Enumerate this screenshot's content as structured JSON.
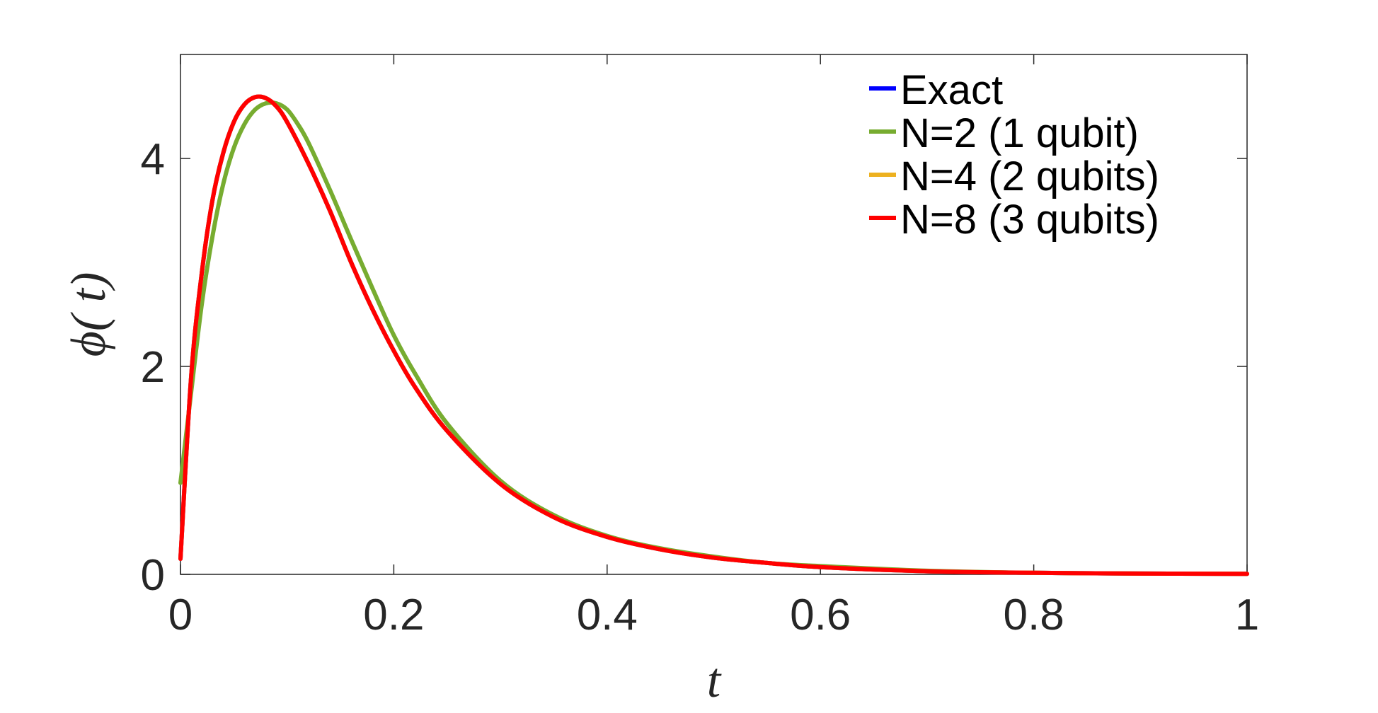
{
  "chart_data": {
    "type": "line",
    "title": "",
    "xlabel": "t",
    "ylabel": "ϕ( t)",
    "xlim": [
      0,
      1
    ],
    "ylim": [
      0,
      5
    ],
    "grid": false,
    "legend_position": "top-right",
    "x_ticks": [
      {
        "value": 0,
        "label": "0"
      },
      {
        "value": 0.2,
        "label": "0.2"
      },
      {
        "value": 0.4,
        "label": "0.4"
      },
      {
        "value": 0.6,
        "label": "0.6"
      },
      {
        "value": 0.8,
        "label": "0.8"
      },
      {
        "value": 1,
        "label": "1"
      }
    ],
    "y_ticks": [
      {
        "value": 0,
        "label": "0"
      },
      {
        "value": 2,
        "label": "2"
      },
      {
        "value": 4,
        "label": "4"
      }
    ],
    "series": [
      {
        "name": "Exact",
        "color": "#0000ff",
        "x": [
          0,
          0.01,
          0.02,
          0.03,
          0.04,
          0.05,
          0.06,
          0.07,
          0.08,
          0.09,
          0.1,
          0.12,
          0.14,
          0.16,
          0.18,
          0.2,
          0.22,
          0.25,
          0.3,
          0.35,
          0.4,
          0.45,
          0.5,
          0.55,
          0.6,
          0.7,
          0.8,
          0.9,
          1
        ],
        "y": [
          0.15,
          1.9,
          2.9,
          3.6,
          4.05,
          4.35,
          4.52,
          4.59,
          4.58,
          4.5,
          4.35,
          3.95,
          3.5,
          3.0,
          2.55,
          2.15,
          1.8,
          1.38,
          0.87,
          0.55,
          0.36,
          0.24,
          0.16,
          0.11,
          0.07,
          0.03,
          0.015,
          0.008,
          0.005
        ]
      },
      {
        "name": "N=2 (1 qubit)",
        "color": "#77ac30",
        "x": [
          0,
          0.01,
          0.02,
          0.03,
          0.04,
          0.05,
          0.06,
          0.07,
          0.08,
          0.09,
          0.1,
          0.11,
          0.12,
          0.14,
          0.16,
          0.18,
          0.2,
          0.22,
          0.25,
          0.3,
          0.35,
          0.4,
          0.45,
          0.5,
          0.55,
          0.6,
          0.7,
          0.8,
          0.9,
          1
        ],
        "y": [
          0.88,
          1.75,
          2.6,
          3.25,
          3.75,
          4.1,
          4.33,
          4.47,
          4.53,
          4.53,
          4.47,
          4.33,
          4.15,
          3.7,
          3.22,
          2.75,
          2.3,
          1.93,
          1.45,
          0.9,
          0.57,
          0.37,
          0.25,
          0.17,
          0.11,
          0.08,
          0.035,
          0.015,
          0.008,
          0.005
        ]
      },
      {
        "name": "N=4 (2 qubits)",
        "color": "#edb120",
        "x": [
          0,
          0.01,
          0.02,
          0.03,
          0.04,
          0.05,
          0.06,
          0.07,
          0.08,
          0.09,
          0.1,
          0.12,
          0.14,
          0.16,
          0.18,
          0.2,
          0.22,
          0.25,
          0.3,
          0.35,
          0.4,
          0.45,
          0.5,
          0.55,
          0.6,
          0.7,
          0.8,
          0.9,
          1
        ],
        "y": [
          0.15,
          1.9,
          2.9,
          3.6,
          4.05,
          4.35,
          4.52,
          4.59,
          4.58,
          4.5,
          4.35,
          3.95,
          3.5,
          3.0,
          2.55,
          2.15,
          1.8,
          1.38,
          0.87,
          0.55,
          0.36,
          0.24,
          0.16,
          0.11,
          0.07,
          0.03,
          0.015,
          0.008,
          0.005
        ]
      },
      {
        "name": "N=8 (3 qubits)",
        "color": "#ff0000",
        "x": [
          0,
          0.01,
          0.02,
          0.03,
          0.04,
          0.05,
          0.06,
          0.07,
          0.08,
          0.09,
          0.1,
          0.12,
          0.14,
          0.16,
          0.18,
          0.2,
          0.22,
          0.25,
          0.3,
          0.35,
          0.4,
          0.45,
          0.5,
          0.55,
          0.6,
          0.7,
          0.8,
          0.9,
          1
        ],
        "y": [
          0.15,
          1.9,
          2.9,
          3.6,
          4.05,
          4.35,
          4.52,
          4.59,
          4.58,
          4.5,
          4.35,
          3.95,
          3.5,
          3.0,
          2.55,
          2.15,
          1.8,
          1.38,
          0.87,
          0.55,
          0.36,
          0.24,
          0.16,
          0.11,
          0.07,
          0.03,
          0.015,
          0.008,
          0.005
        ]
      }
    ]
  }
}
